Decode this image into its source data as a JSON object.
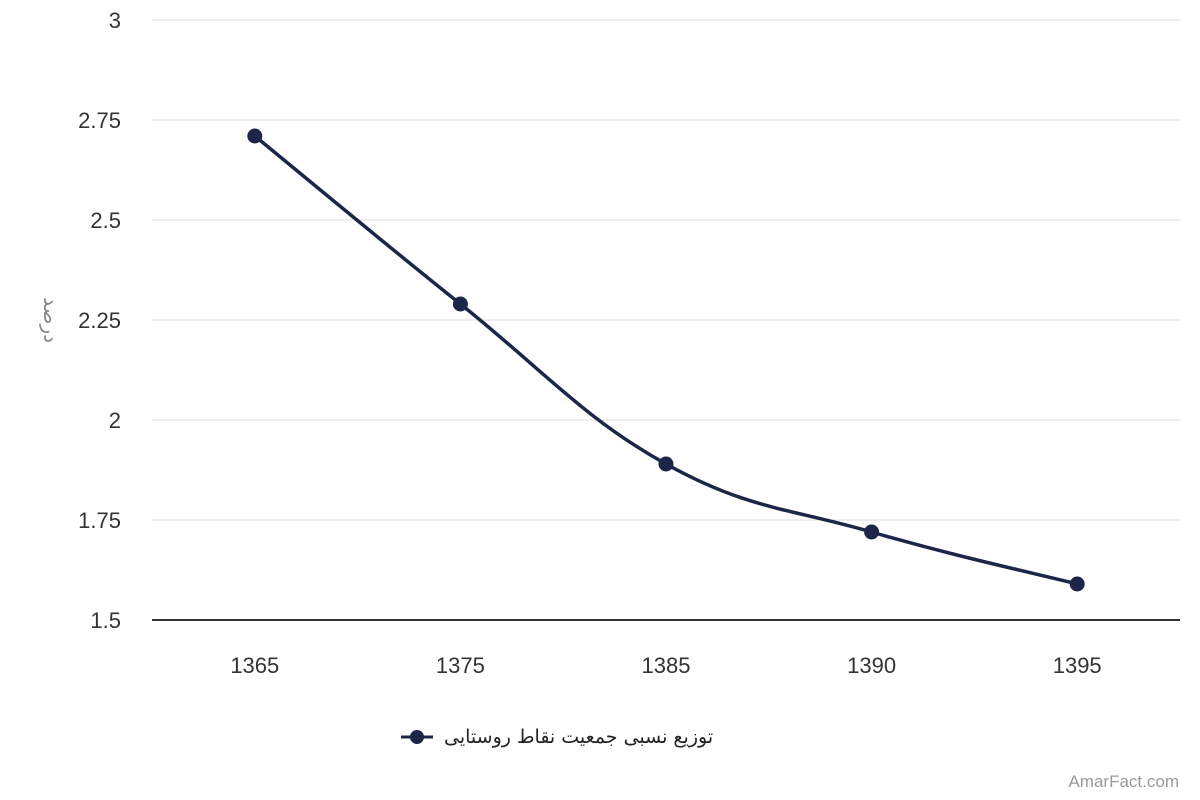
{
  "chart_data": {
    "type": "line",
    "x": [
      "1365",
      "1375",
      "1385",
      "1390",
      "1395"
    ],
    "series": [
      {
        "name": "توزیع نسبی جمعیت نقاط روستایی",
        "values": [
          2.71,
          2.29,
          1.89,
          1.72,
          1.59
        ],
        "color": "#1b2648"
      }
    ],
    "ylabel": "درصد",
    "xlabel": "",
    "ylim": [
      1.5,
      3
    ],
    "yticks": [
      "1.5",
      "1.75",
      "2",
      "2.25",
      "2.5",
      "2.75",
      "3"
    ],
    "grid": true,
    "legend_position": "bottom-center"
  },
  "watermark": "AmarFact.com"
}
